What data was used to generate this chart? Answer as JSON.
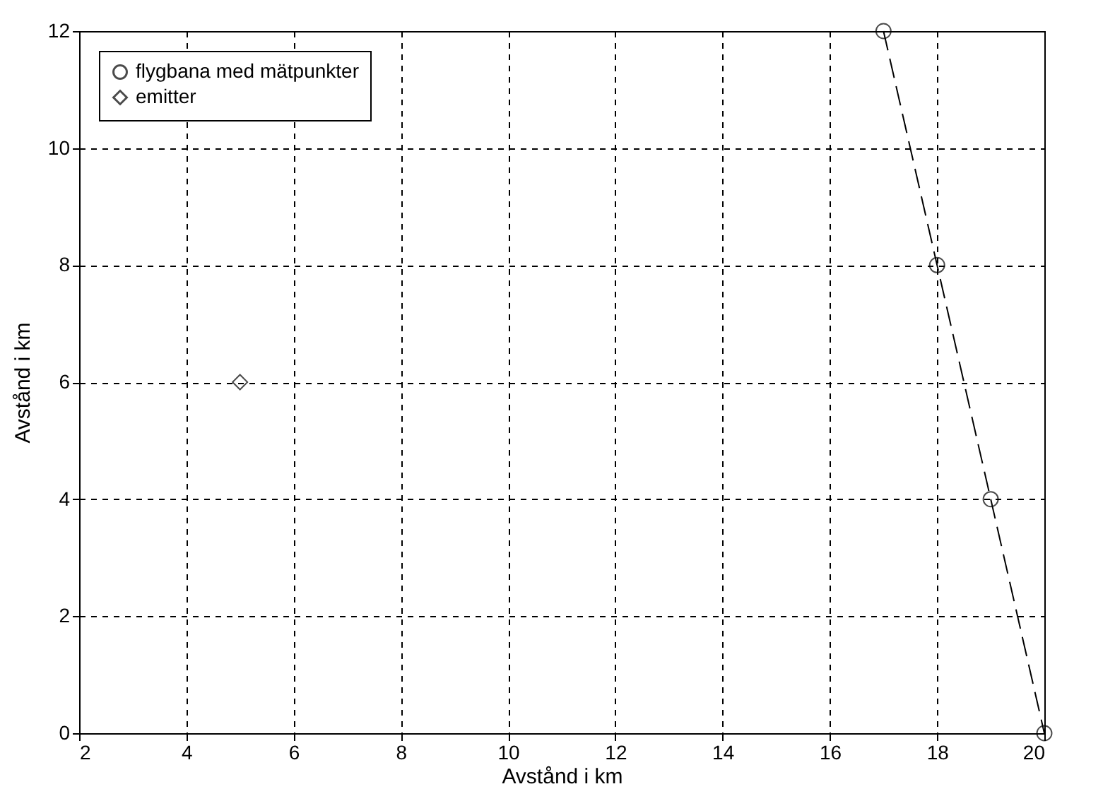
{
  "chart_data": {
    "type": "line",
    "xlabel": "Avstånd i km",
    "ylabel": "Avstånd i km",
    "xlim": [
      2,
      20
    ],
    "ylim": [
      0,
      12
    ],
    "xticks": [
      2,
      4,
      6,
      8,
      10,
      12,
      14,
      16,
      18,
      20
    ],
    "yticks": [
      0,
      2,
      4,
      6,
      8,
      10,
      12
    ],
    "grid": true,
    "legend": "top left",
    "series": [
      {
        "name": "flygbana med mätpunkter",
        "color": "#000000",
        "marker": "circle",
        "line_style": "dashed",
        "x": [
          17,
          18,
          19,
          20
        ],
        "values": [
          12,
          8,
          4,
          0
        ]
      },
      {
        "name": "emitter",
        "type": "scatter",
        "color": "#000000",
        "marker": "diamond",
        "x": [
          5
        ],
        "values": [
          6
        ]
      }
    ]
  }
}
